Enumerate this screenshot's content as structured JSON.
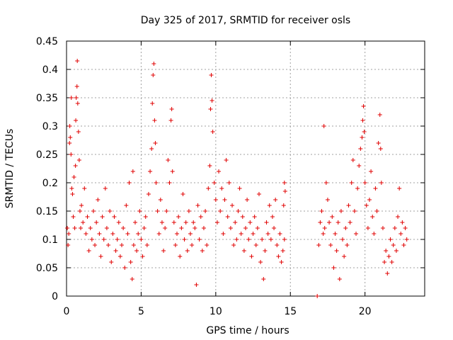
{
  "chart_data": {
    "type": "scatter",
    "title": "Day 325 of 2017, SRMTID for receiver osls",
    "xlabel": "GPS time / hours",
    "ylabel": "SRMTID / TECUs",
    "xlim": [
      0,
      24
    ],
    "ylim": [
      0,
      0.45
    ],
    "xticks": [
      0,
      5,
      10,
      15,
      20
    ],
    "yticks": [
      0,
      0.05,
      0.1,
      0.15,
      0.2,
      0.25,
      0.3,
      0.35,
      0.4,
      0.45
    ],
    "xtick_labels": [
      "0",
      "5",
      "10",
      "15",
      "20"
    ],
    "ytick_labels": [
      "0",
      "0.05",
      "0.1",
      "0.15",
      "0.2",
      "0.25",
      "0.3",
      "0.35",
      "0.4",
      "0.45"
    ],
    "grid": true,
    "marker": "plus",
    "colors": {
      "series": "#e00000",
      "grid": "#a0a0a0",
      "axis": "#000000"
    },
    "series": [
      {
        "points": [
          [
            0.05,
            0.12
          ],
          [
            0.1,
            0.09
          ],
          [
            0.15,
            0.11
          ],
          [
            0.2,
            0.27
          ],
          [
            0.22,
            0.3
          ],
          [
            0.25,
            0.28
          ],
          [
            0.3,
            0.25
          ],
          [
            0.32,
            0.35
          ],
          [
            0.35,
            0.19
          ],
          [
            0.4,
            0.18
          ],
          [
            0.45,
            0.14
          ],
          [
            0.5,
            0.21
          ],
          [
            0.55,
            0.12
          ],
          [
            0.6,
            0.23
          ],
          [
            0.62,
            0.31
          ],
          [
            0.65,
            0.35
          ],
          [
            0.7,
            0.37
          ],
          [
            0.72,
            0.415
          ],
          [
            0.75,
            0.34
          ],
          [
            0.8,
            0.29
          ],
          [
            0.85,
            0.24
          ],
          [
            0.9,
            0.15
          ],
          [
            0.95,
            0.12
          ],
          [
            1.0,
            0.16
          ],
          [
            1.1,
            0.13
          ],
          [
            1.2,
            0.19
          ],
          [
            1.3,
            0.11
          ],
          [
            1.4,
            0.14
          ],
          [
            1.5,
            0.08
          ],
          [
            1.6,
            0.12
          ],
          [
            1.7,
            0.1
          ],
          [
            1.8,
            0.15
          ],
          [
            1.9,
            0.09
          ],
          [
            2.0,
            0.13
          ],
          [
            2.1,
            0.17
          ],
          [
            2.2,
            0.11
          ],
          [
            2.3,
            0.07
          ],
          [
            2.4,
            0.14
          ],
          [
            2.5,
            0.1
          ],
          [
            2.6,
            0.19
          ],
          [
            2.7,
            0.12
          ],
          [
            2.8,
            0.09
          ],
          [
            2.9,
            0.15
          ],
          [
            3.0,
            0.06
          ],
          [
            3.1,
            0.11
          ],
          [
            3.2,
            0.14
          ],
          [
            3.3,
            0.08
          ],
          [
            3.4,
            0.1
          ],
          [
            3.5,
            0.13
          ],
          [
            3.6,
            0.07
          ],
          [
            3.7,
            0.09
          ],
          [
            3.8,
            0.12
          ],
          [
            3.9,
            0.05
          ],
          [
            4.0,
            0.16
          ],
          [
            4.1,
            0.11
          ],
          [
            4.2,
            0.2
          ],
          [
            4.3,
            0.06
          ],
          [
            4.4,
            0.03
          ],
          [
            4.45,
            0.22
          ],
          [
            4.5,
            0.09
          ],
          [
            4.6,
            0.13
          ],
          [
            4.7,
            0.08
          ],
          [
            4.8,
            0.11
          ],
          [
            4.9,
            0.15
          ],
          [
            5.0,
            0.1
          ],
          [
            5.1,
            0.07
          ],
          [
            5.2,
            0.12
          ],
          [
            5.3,
            0.14
          ],
          [
            5.4,
            0.09
          ],
          [
            5.5,
            0.18
          ],
          [
            5.6,
            0.22
          ],
          [
            5.7,
            0.26
          ],
          [
            5.75,
            0.34
          ],
          [
            5.8,
            0.39
          ],
          [
            5.85,
            0.41
          ],
          [
            5.9,
            0.31
          ],
          [
            5.95,
            0.27
          ],
          [
            6.0,
            0.2
          ],
          [
            6.1,
            0.15
          ],
          [
            6.2,
            0.11
          ],
          [
            6.3,
            0.17
          ],
          [
            6.4,
            0.13
          ],
          [
            6.5,
            0.08
          ],
          [
            6.6,
            0.12
          ],
          [
            6.7,
            0.15
          ],
          [
            6.8,
            0.24
          ],
          [
            6.9,
            0.2
          ],
          [
            7.0,
            0.31
          ],
          [
            7.05,
            0.33
          ],
          [
            7.1,
            0.22
          ],
          [
            7.2,
            0.13
          ],
          [
            7.3,
            0.09
          ],
          [
            7.4,
            0.11
          ],
          [
            7.5,
            0.14
          ],
          [
            7.6,
            0.07
          ],
          [
            7.7,
            0.12
          ],
          [
            7.8,
            0.18
          ],
          [
            7.9,
            0.1
          ],
          [
            8.0,
            0.13
          ],
          [
            8.1,
            0.08
          ],
          [
            8.2,
            0.15
          ],
          [
            8.3,
            0.11
          ],
          [
            8.4,
            0.09
          ],
          [
            8.5,
            0.13
          ],
          [
            8.6,
            0.12
          ],
          [
            8.7,
            0.02
          ],
          [
            8.8,
            0.16
          ],
          [
            8.9,
            0.1
          ],
          [
            9.0,
            0.14
          ],
          [
            9.1,
            0.08
          ],
          [
            9.2,
            0.12
          ],
          [
            9.3,
            0.15
          ],
          [
            9.4,
            0.09
          ],
          [
            9.5,
            0.19
          ],
          [
            9.6,
            0.23
          ],
          [
            9.65,
            0.33
          ],
          [
            9.7,
            0.39
          ],
          [
            9.75,
            0.345
          ],
          [
            9.8,
            0.29
          ],
          [
            9.9,
            0.2
          ],
          [
            10.0,
            0.17
          ],
          [
            10.1,
            0.13
          ],
          [
            10.2,
            0.22
          ],
          [
            10.3,
            0.15
          ],
          [
            10.4,
            0.19
          ],
          [
            10.5,
            0.11
          ],
          [
            10.6,
            0.17
          ],
          [
            10.7,
            0.24
          ],
          [
            10.8,
            0.14
          ],
          [
            10.9,
            0.2
          ],
          [
            11.0,
            0.12
          ],
          [
            11.1,
            0.16
          ],
          [
            11.2,
            0.09
          ],
          [
            11.3,
            0.13
          ],
          [
            11.4,
            0.1
          ],
          [
            11.5,
            0.15
          ],
          [
            11.6,
            0.19
          ],
          [
            11.7,
            0.11
          ],
          [
            11.8,
            0.14
          ],
          [
            11.9,
            0.08
          ],
          [
            12.0,
            0.12
          ],
          [
            12.1,
            0.17
          ],
          [
            12.2,
            0.1
          ],
          [
            12.3,
            0.13
          ],
          [
            12.4,
            0.07
          ],
          [
            12.5,
            0.11
          ],
          [
            12.6,
            0.14
          ],
          [
            12.7,
            0.09
          ],
          [
            12.8,
            0.12
          ],
          [
            12.9,
            0.18
          ],
          [
            13.0,
            0.06
          ],
          [
            13.1,
            0.1
          ],
          [
            13.2,
            0.03
          ],
          [
            13.3,
            0.08
          ],
          [
            13.4,
            0.13
          ],
          [
            13.5,
            0.11
          ],
          [
            13.6,
            0.16
          ],
          [
            13.7,
            0.1
          ],
          [
            13.8,
            0.14
          ],
          [
            13.9,
            0.12
          ],
          [
            14.0,
            0.17
          ],
          [
            14.1,
            0.09
          ],
          [
            14.2,
            0.07
          ],
          [
            14.3,
            0.11
          ],
          [
            14.4,
            0.06
          ],
          [
            14.5,
            0.08
          ],
          [
            14.6,
            0.1
          ],
          [
            14.6,
            0.2
          ],
          [
            14.65,
            0.185
          ],
          [
            14.55,
            0.16
          ],
          [
            16.8,
            0.0
          ],
          [
            16.9,
            0.09
          ],
          [
            17.0,
            0.13
          ],
          [
            17.1,
            0.15
          ],
          [
            17.2,
            0.11
          ],
          [
            17.25,
            0.3
          ],
          [
            17.3,
            0.12
          ],
          [
            17.4,
            0.2
          ],
          [
            17.5,
            0.17
          ],
          [
            17.6,
            0.13
          ],
          [
            17.7,
            0.09
          ],
          [
            17.8,
            0.14
          ],
          [
            17.9,
            0.05
          ],
          [
            18.0,
            0.11
          ],
          [
            18.1,
            0.08
          ],
          [
            18.2,
            0.13
          ],
          [
            18.3,
            0.03
          ],
          [
            18.4,
            0.15
          ],
          [
            18.5,
            0.1
          ],
          [
            18.6,
            0.07
          ],
          [
            18.7,
            0.12
          ],
          [
            18.8,
            0.09
          ],
          [
            18.9,
            0.16
          ],
          [
            19.0,
            0.13
          ],
          [
            19.1,
            0.2
          ],
          [
            19.2,
            0.24
          ],
          [
            19.3,
            0.15
          ],
          [
            19.4,
            0.11
          ],
          [
            19.5,
            0.19
          ],
          [
            19.6,
            0.23
          ],
          [
            19.7,
            0.26
          ],
          [
            19.8,
            0.28
          ],
          [
            19.85,
            0.31
          ],
          [
            19.9,
            0.335
          ],
          [
            19.95,
            0.29
          ],
          [
            20.0,
            0.2
          ],
          [
            20.1,
            0.16
          ],
          [
            20.2,
            0.12
          ],
          [
            20.3,
            0.17
          ],
          [
            20.4,
            0.22
          ],
          [
            20.5,
            0.14
          ],
          [
            20.6,
            0.11
          ],
          [
            20.7,
            0.19
          ],
          [
            20.8,
            0.15
          ],
          [
            20.9,
            0.27
          ],
          [
            21.0,
            0.32
          ],
          [
            21.05,
            0.26
          ],
          [
            21.1,
            0.2
          ],
          [
            21.2,
            0.12
          ],
          [
            21.3,
            0.06
          ],
          [
            21.4,
            0.08
          ],
          [
            21.5,
            0.04
          ],
          [
            21.6,
            0.07
          ],
          [
            21.7,
            0.1
          ],
          [
            21.8,
            0.06
          ],
          [
            21.9,
            0.09
          ],
          [
            22.0,
            0.12
          ],
          [
            22.1,
            0.08
          ],
          [
            22.2,
            0.14
          ],
          [
            22.3,
            0.19
          ],
          [
            22.4,
            0.11
          ],
          [
            22.5,
            0.13
          ],
          [
            22.6,
            0.09
          ],
          [
            22.7,
            0.12
          ],
          [
            22.8,
            0.1
          ]
        ]
      }
    ]
  }
}
